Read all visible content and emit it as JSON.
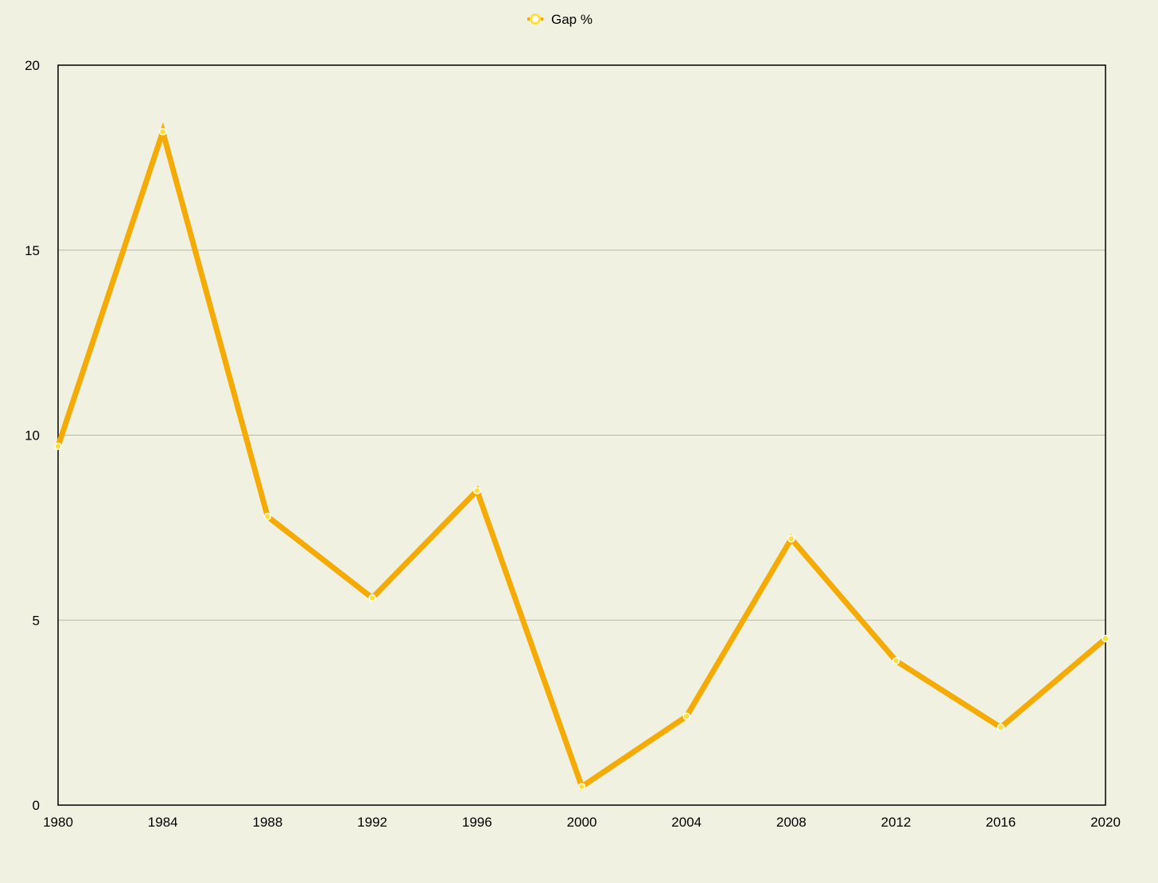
{
  "chart_data": {
    "type": "line",
    "x": [
      "1980",
      "1984",
      "1988",
      "1992",
      "1996",
      "2000",
      "2004",
      "2008",
      "2012",
      "2016",
      "2020"
    ],
    "series": [
      {
        "name": "Gap %",
        "values": [
          9.7,
          18.2,
          7.8,
          5.6,
          8.5,
          0.5,
          2.4,
          7.2,
          3.9,
          2.1,
          4.5
        ]
      }
    ],
    "yticks": [
      "0",
      "5",
      "10",
      "15",
      "20"
    ],
    "ylim": [
      0,
      20
    ],
    "grid": "horizontal",
    "legend_position": "top-center",
    "colors": {
      "line": "#f5ab05",
      "marker_fill": "#fbe03e",
      "marker_stroke": "#f5ab05",
      "grid": "#b5b7a8",
      "axis": "#000000",
      "background": "#f1f1e2"
    }
  }
}
